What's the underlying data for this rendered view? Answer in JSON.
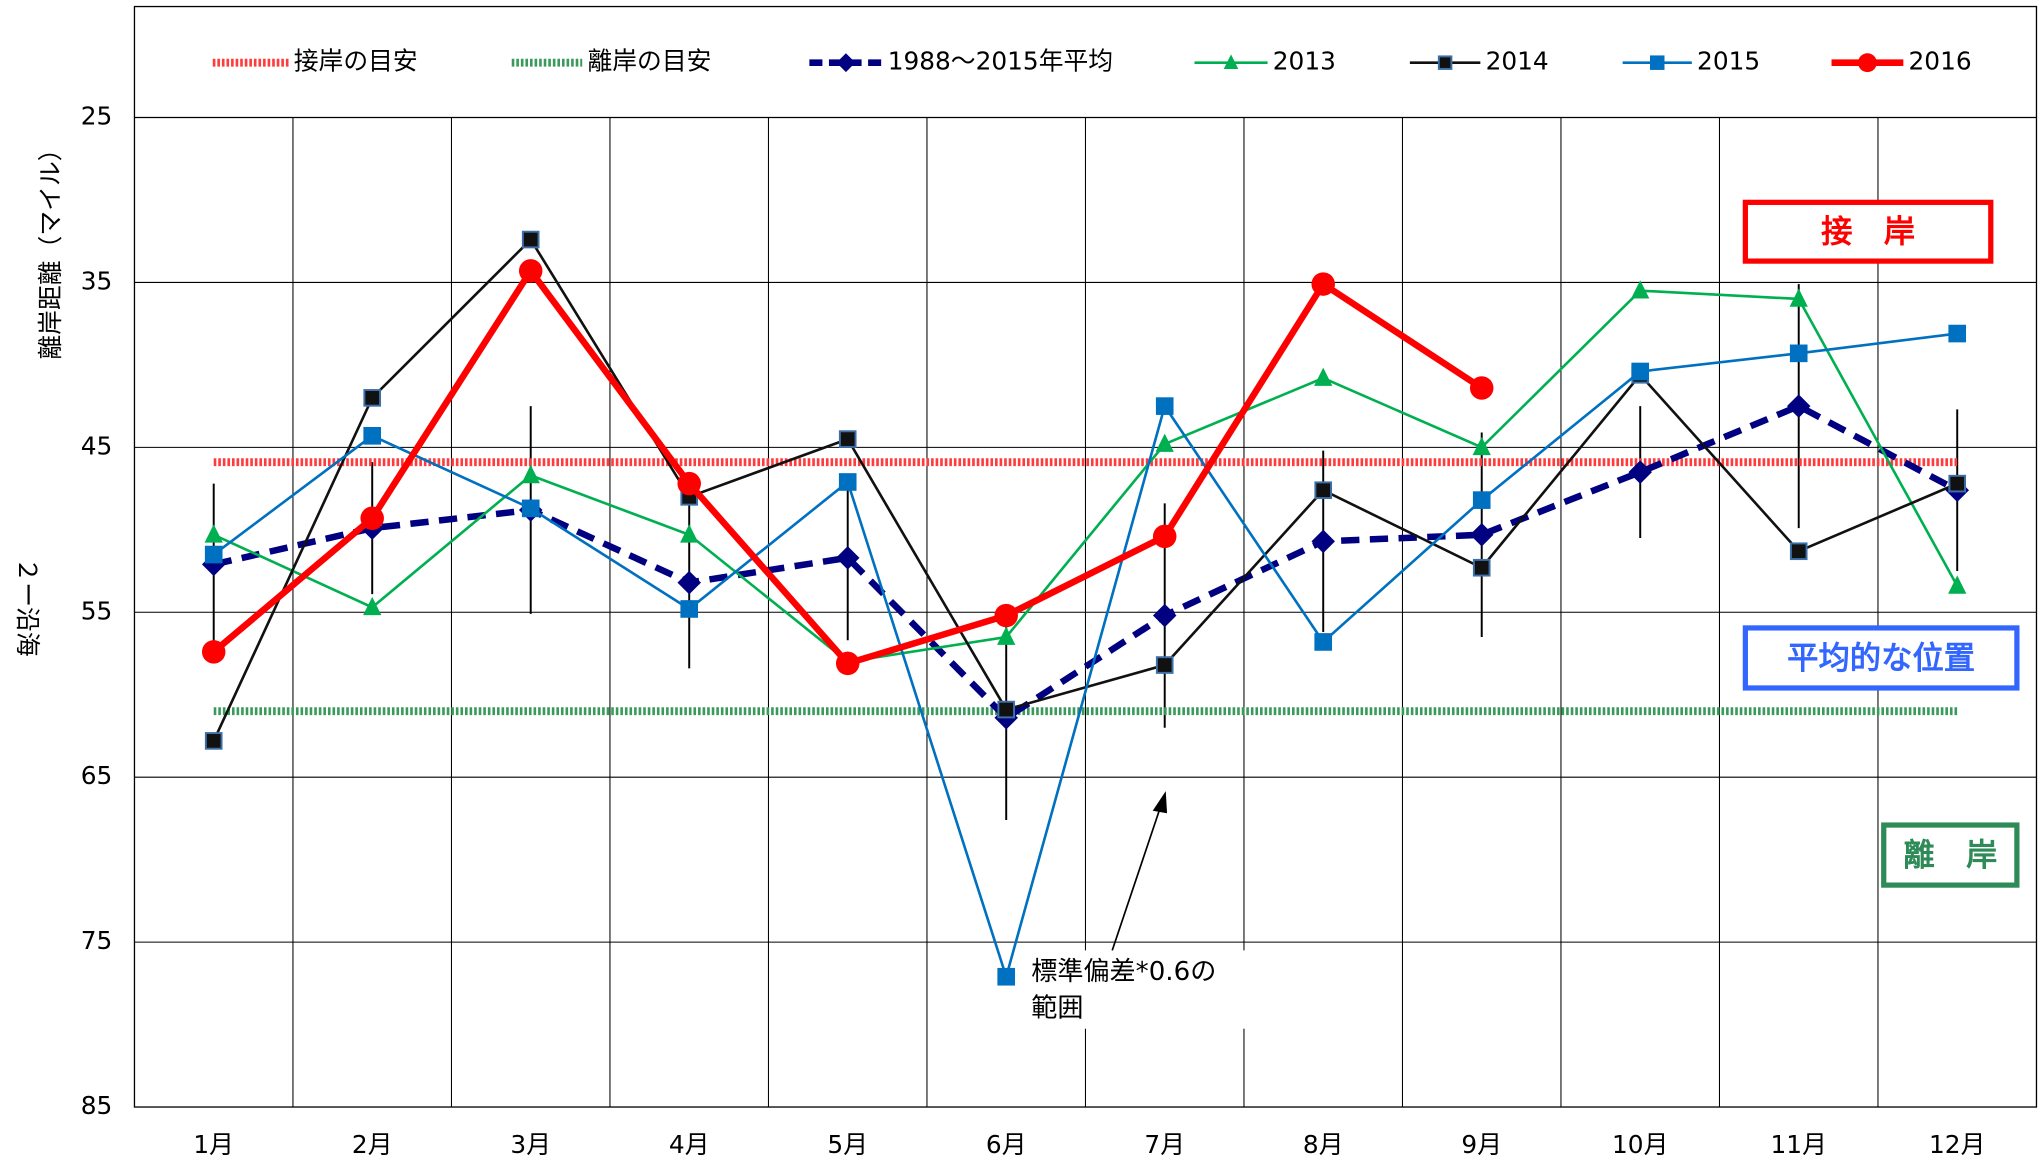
{
  "chart_data": {
    "type": "line",
    "y_label": "離岸距離（マイル）",
    "y_label2": "２ー沿海",
    "categories": [
      "1月",
      "2月",
      "3月",
      "4月",
      "5月",
      "6月",
      "7月",
      "8月",
      "9月",
      "10月",
      "11月",
      "12月"
    ],
    "ylim": [
      85,
      25
    ],
    "yticks": [
      25,
      35,
      45,
      55,
      65,
      75,
      85
    ],
    "grid": true,
    "legend": "top",
    "series": [
      {
        "name": "接岸の目安",
        "color": "#ff3b3b",
        "marker": "none",
        "style": "dotted",
        "width": 6,
        "values": [
          45.9,
          45.9,
          45.9,
          45.9,
          45.9,
          45.9,
          45.9,
          45.9,
          45.9,
          45.9,
          45.9,
          45.9
        ]
      },
      {
        "name": "離岸の目安",
        "color": "#3a9a5c",
        "marker": "none",
        "style": "dotted",
        "width": 6,
        "values": [
          61.0,
          61.0,
          61.0,
          61.0,
          61.0,
          61.0,
          61.0,
          61.0,
          61.0,
          61.0,
          61.0,
          61.0
        ]
      },
      {
        "name": "1988～2015年平均",
        "color": "#000080",
        "marker": "diamond",
        "style": "dashed",
        "width": 5,
        "values": [
          52.1,
          49.9,
          48.8,
          53.2,
          51.7,
          61.4,
          55.2,
          50.7,
          50.3,
          46.5,
          42.5,
          47.6
        ],
        "errors": [
          4.9,
          4.0,
          6.3,
          5.2,
          5.0,
          6.2,
          6.8,
          5.5,
          6.2,
          4.0,
          7.4,
          4.9
        ]
      },
      {
        "name": "2013",
        "color": "#00b050",
        "marker": "triangle",
        "style": "solid",
        "width": 2,
        "values": [
          50.3,
          54.7,
          46.7,
          50.3,
          58.0,
          56.5,
          44.8,
          40.8,
          45.0,
          35.5,
          36.0,
          53.4
        ]
      },
      {
        "name": "2014",
        "color": "#111111",
        "marker": "square",
        "style": "solid",
        "width": 2,
        "values": [
          62.8,
          42.0,
          32.4,
          48.0,
          44.5,
          60.9,
          58.2,
          47.6,
          52.3,
          40.6,
          51.3,
          47.2
        ]
      },
      {
        "name": "2015",
        "color": "#0070c0",
        "marker": "square",
        "style": "solid",
        "width": 2,
        "values": [
          51.5,
          44.3,
          48.7,
          54.8,
          47.1,
          77.1,
          42.5,
          56.8,
          48.2,
          40.4,
          39.3,
          38.1
        ]
      },
      {
        "name": "2016",
        "color": "#ff0000",
        "marker": "circle",
        "style": "solid",
        "width": 5,
        "values": [
          57.4,
          49.3,
          34.3,
          47.2,
          58.1,
          55.2,
          50.4,
          35.1,
          41.4,
          null,
          null,
          null
        ]
      }
    ],
    "annotations": [
      {
        "text": "接　岸",
        "color": "#ff0000"
      },
      {
        "text": "平均的な位置",
        "color": "#3366ff"
      },
      {
        "text": "離　岸",
        "color": "#2e8b57"
      }
    ],
    "note": [
      "標準偏差*0.6の",
      "範囲"
    ]
  }
}
